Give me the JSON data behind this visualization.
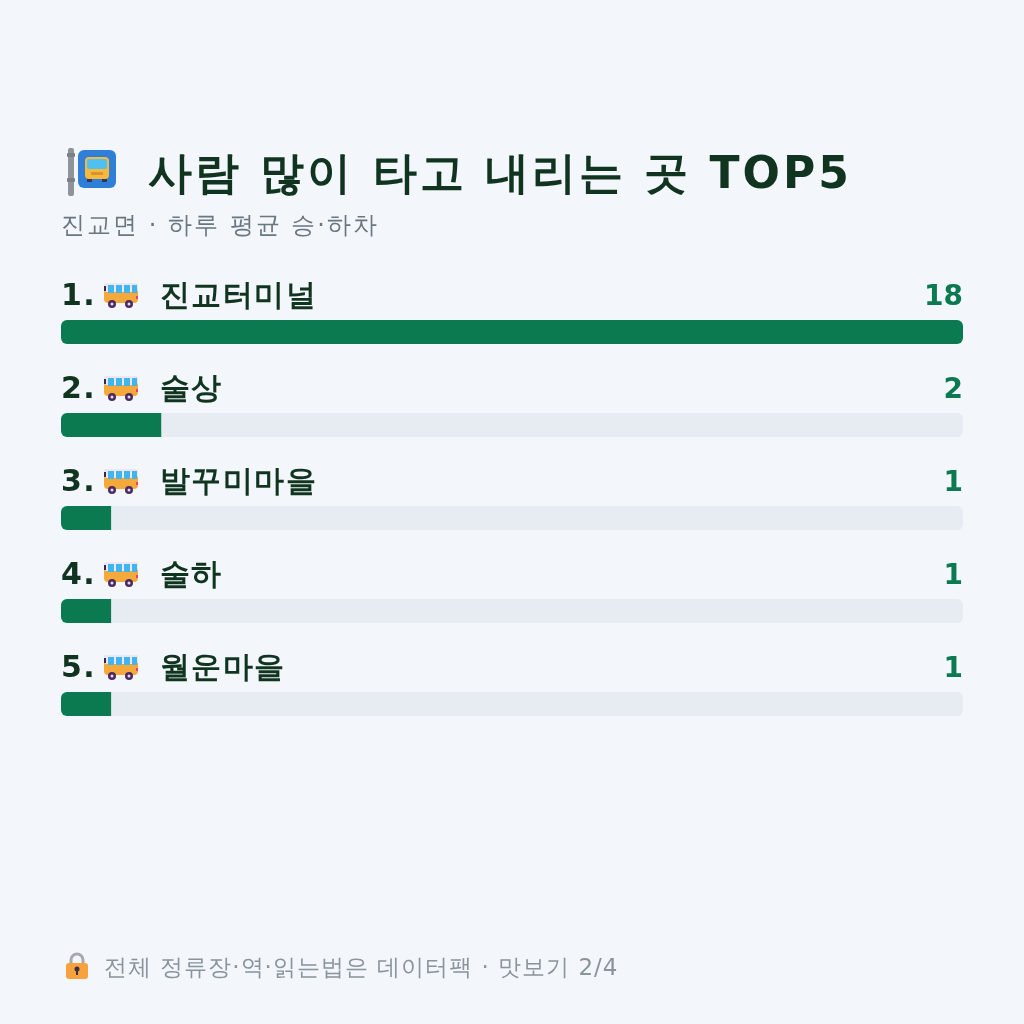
{
  "chart_data": {
    "type": "bar",
    "orientation": "horizontal",
    "title": "사람 많이 타고 내리는 곳 TOP5",
    "subtitle": "진교면 · 하루 평균 승·하차",
    "categories": [
      "1. 진교터미널",
      "2. 술상",
      "3. 발꾸미마을",
      "4. 술하",
      "5. 월운마을"
    ],
    "values": [
      18,
      2,
      1,
      1,
      1
    ],
    "color": "#0b7a50",
    "xlim": [
      0,
      18
    ],
    "data_labels": true,
    "annotations": [
      "전체 정류장·역·읽는법은 데이터팩 · 맛보기 2/4"
    ]
  }
}
